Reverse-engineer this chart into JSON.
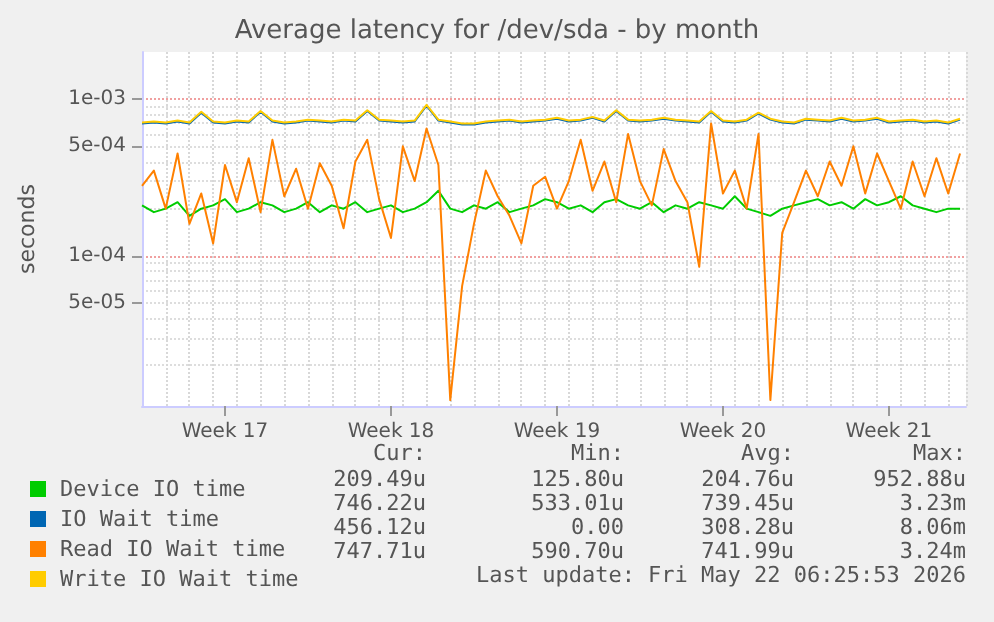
{
  "chart_data": {
    "type": "line",
    "title": "Average latency for /dev/sda - by month",
    "ylabel": "seconds",
    "x": [
      "2026-04-17T12:00",
      "2026-04-18T00:00",
      "2026-04-18T12:00",
      "2026-04-19T00:00",
      "2026-04-19T12:00",
      "2026-04-20T00:00",
      "2026-04-20T12:00",
      "2026-04-21T00:00",
      "2026-04-21T12:00",
      "2026-04-22T00:00",
      "2026-04-22T12:00",
      "2026-04-23T00:00",
      "2026-04-23T12:00",
      "2026-04-24T00:00",
      "2026-04-24T12:00",
      "2026-04-25T00:00",
      "2026-04-25T12:00",
      "2026-04-26T00:00",
      "2026-04-26T12:00",
      "2026-04-27T00:00",
      "2026-04-27T12:00",
      "2026-04-28T00:00",
      "2026-04-28T12:00",
      "2026-04-29T00:00",
      "2026-04-29T12:00",
      "2026-04-30T00:00",
      "2026-04-30T12:00",
      "2026-05-01T00:00",
      "2026-05-01T12:00",
      "2026-05-02T00:00",
      "2026-05-02T12:00",
      "2026-05-03T00:00",
      "2026-05-03T12:00",
      "2026-05-04T00:00",
      "2026-05-04T12:00",
      "2026-05-05T00:00",
      "2026-05-05T12:00",
      "2026-05-06T00:00",
      "2026-05-06T12:00",
      "2026-05-07T00:00",
      "2026-05-07T12:00",
      "2026-05-08T00:00",
      "2026-05-08T12:00",
      "2026-05-09T00:00",
      "2026-05-09T12:00",
      "2026-05-10T00:00",
      "2026-05-10T12:00",
      "2026-05-11T00:00",
      "2026-05-11T12:00",
      "2026-05-12T00:00",
      "2026-05-12T12:00",
      "2026-05-13T00:00",
      "2026-05-13T12:00",
      "2026-05-14T00:00",
      "2026-05-14T12:00",
      "2026-05-15T00:00",
      "2026-05-15T12:00",
      "2026-05-16T00:00",
      "2026-05-16T12:00",
      "2026-05-17T00:00",
      "2026-05-17T12:00",
      "2026-05-18T00:00",
      "2026-05-18T12:00",
      "2026-05-19T00:00",
      "2026-05-19T12:00",
      "2026-05-20T00:00",
      "2026-05-20T12:00",
      "2026-05-21T00:00",
      "2026-05-21T12:00",
      "2026-05-22T00:00"
    ],
    "series": [
      {
        "name": "Device IO time",
        "color": "#00cc00",
        "values": [
          0.00021,
          0.00019,
          0.0002,
          0.00022,
          0.00018,
          0.0002,
          0.00021,
          0.00023,
          0.00019,
          0.0002,
          0.00022,
          0.00021,
          0.00019,
          0.0002,
          0.00022,
          0.00019,
          0.00021,
          0.0002,
          0.00022,
          0.00019,
          0.0002,
          0.00021,
          0.00019,
          0.0002,
          0.00022,
          0.00026,
          0.0002,
          0.00019,
          0.00021,
          0.0002,
          0.00022,
          0.00019,
          0.0002,
          0.00021,
          0.00023,
          0.00022,
          0.0002,
          0.00021,
          0.00019,
          0.00022,
          0.00023,
          0.00021,
          0.0002,
          0.00022,
          0.00019,
          0.00021,
          0.0002,
          0.00022,
          0.00021,
          0.0002,
          0.00024,
          0.0002,
          0.00019,
          0.00018,
          0.0002,
          0.00021,
          0.00022,
          0.00023,
          0.00021,
          0.00022,
          0.0002,
          0.00023,
          0.00021,
          0.00022,
          0.00024,
          0.00021,
          0.0002,
          0.00019,
          0.0002,
          0.0002
        ]
      },
      {
        "name": "IO Wait time",
        "color": "#0066b3",
        "values": [
          0.0007,
          0.00071,
          0.0007,
          0.00072,
          0.0007,
          0.00082,
          0.00071,
          0.0007,
          0.00072,
          0.00071,
          0.00083,
          0.00072,
          0.0007,
          0.00071,
          0.00073,
          0.00072,
          0.00071,
          0.00073,
          0.00072,
          0.00084,
          0.00073,
          0.00072,
          0.00071,
          0.00072,
          0.00091,
          0.00073,
          0.00071,
          0.00069,
          0.00069,
          0.00071,
          0.00072,
          0.00073,
          0.00071,
          0.00072,
          0.00073,
          0.00075,
          0.00072,
          0.00073,
          0.00076,
          0.00072,
          0.00084,
          0.00073,
          0.00072,
          0.00073,
          0.00075,
          0.00073,
          0.00072,
          0.00071,
          0.00083,
          0.00072,
          0.00071,
          0.00073,
          0.00081,
          0.00074,
          0.00071,
          0.0007,
          0.00074,
          0.00073,
          0.00072,
          0.00075,
          0.00072,
          0.00073,
          0.00075,
          0.00071,
          0.00072,
          0.00073,
          0.00071,
          0.00072,
          0.0007,
          0.00074
        ]
      },
      {
        "name": "Read IO Wait time",
        "color": "#ff8000",
        "values": [
          0.00028,
          0.00035,
          0.0002,
          0.00045,
          0.00016,
          0.00025,
          0.00012,
          0.00038,
          0.00022,
          0.00042,
          0.00019,
          0.00055,
          0.00024,
          0.00036,
          0.0002,
          0.00039,
          0.00028,
          0.00015,
          0.0004,
          0.00055,
          0.00023,
          0.00013,
          0.0005,
          0.0003,
          0.00065,
          0.00038,
          1.2e-05,
          6.4e-05,
          0.00016,
          0.00035,
          0.00024,
          0.00018,
          0.00012,
          0.00028,
          0.00032,
          0.0002,
          0.0003,
          0.00055,
          0.00026,
          0.0004,
          0.00022,
          0.0006,
          0.0003,
          0.00021,
          0.00048,
          0.0003,
          0.00022,
          8.5e-05,
          0.0007,
          0.00025,
          0.00035,
          0.0002,
          0.0006,
          1.2e-05,
          0.00014,
          0.00022,
          0.00035,
          0.00024,
          0.0004,
          0.00028,
          0.0005,
          0.00025,
          0.00045,
          0.0003,
          0.0002,
          0.0004,
          0.00024,
          0.00042,
          0.00025,
          0.00045
        ]
      },
      {
        "name": "Write IO Wait time",
        "color": "#ffcc00",
        "values": [
          0.00071,
          0.00072,
          0.00071,
          0.00073,
          0.00071,
          0.00083,
          0.00072,
          0.00071,
          0.00073,
          0.00072,
          0.00084,
          0.00073,
          0.00071,
          0.00072,
          0.00074,
          0.00073,
          0.00072,
          0.00074,
          0.00073,
          0.00085,
          0.00074,
          0.00073,
          0.00072,
          0.00073,
          0.00092,
          0.00074,
          0.00072,
          0.0007,
          0.0007,
          0.00072,
          0.00073,
          0.00074,
          0.00072,
          0.00073,
          0.00074,
          0.00076,
          0.00073,
          0.00074,
          0.00077,
          0.00073,
          0.00085,
          0.00074,
          0.00073,
          0.00074,
          0.00076,
          0.00074,
          0.00073,
          0.00072,
          0.00084,
          0.00073,
          0.00072,
          0.00074,
          0.00082,
          0.00075,
          0.00072,
          0.00071,
          0.00075,
          0.00074,
          0.00073,
          0.00076,
          0.00073,
          0.00074,
          0.00076,
          0.00072,
          0.00073,
          0.00074,
          0.00072,
          0.00073,
          0.00071,
          0.00075
        ]
      }
    ],
    "xlim": [
      "2026-04-17T12:00",
      "2026-05-22T06:00"
    ],
    "xticks": [
      {
        "value": "2026-04-21T00:00",
        "label": "Week 17"
      },
      {
        "value": "2026-04-28T00:00",
        "label": "Week 18"
      },
      {
        "value": "2026-05-05T00:00",
        "label": "Week 19"
      },
      {
        "value": "2026-05-12T00:00",
        "label": "Week 20"
      },
      {
        "value": "2026-05-19T00:00",
        "label": "Week 21"
      }
    ],
    "ylim": [
      1.1e-05,
      0.002
    ],
    "yticks": [
      {
        "value": 5e-05,
        "label": "5e-05"
      },
      {
        "value": 0.0001,
        "label": "1e-04"
      },
      {
        "value": 0.0005,
        "label": "5e-04"
      },
      {
        "value": 0.001,
        "label": "1e-03"
      }
    ],
    "log": "y",
    "grid": true,
    "legend": "bottom",
    "marker": "none",
    "line_style": "solid",
    "annotations": [
      "Cur:",
      "Min:",
      "Avg:",
      "Max:",
      "209.49u",
      "125.80u",
      "204.76u",
      "952.88u",
      "746.22u",
      "533.01u",
      "739.45u",
      "3.23m",
      "456.12u",
      "0.00",
      "308.28u",
      "8.06m",
      "747.71u",
      "590.70u",
      "741.99u",
      "3.24m",
      "Last update: Fri May 22 06:25:53 2026"
    ]
  }
}
